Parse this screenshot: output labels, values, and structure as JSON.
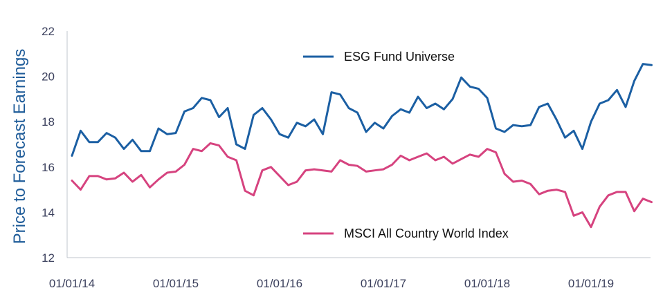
{
  "chart_data": {
    "type": "line",
    "ylabel": "Price to Forecast Earnings",
    "xlabel": "",
    "ylim": [
      12,
      22
    ],
    "yticks": [
      "12",
      "14",
      "16",
      "18",
      "20",
      "22"
    ],
    "xticks": [
      "01/01/14",
      "01/01/15",
      "01/01/16",
      "01/01/17",
      "01/01/18",
      "01/01/19"
    ],
    "x_start": "01/01/14",
    "x_interval": "monthly",
    "grid": false,
    "series": [
      {
        "name": "ESG Fund Universe",
        "color": "#1b5fa3",
        "values": [
          16.5,
          17.6,
          17.1,
          17.1,
          17.5,
          17.3,
          16.8,
          17.2,
          16.7,
          16.7,
          17.7,
          17.45,
          17.5,
          18.45,
          18.6,
          19.05,
          18.95,
          18.2,
          18.6,
          17.0,
          16.8,
          18.3,
          18.6,
          18.1,
          17.45,
          17.3,
          17.95,
          17.8,
          18.1,
          17.45,
          19.3,
          19.2,
          18.6,
          18.4,
          17.55,
          17.95,
          17.7,
          18.25,
          18.55,
          18.4,
          19.1,
          18.6,
          18.8,
          18.55,
          19.0,
          19.95,
          19.55,
          19.45,
          19.05,
          17.7,
          17.55,
          17.85,
          17.8,
          17.85,
          18.65,
          18.8,
          18.1,
          17.3,
          17.6,
          16.8,
          18.0,
          18.8,
          18.95,
          19.4,
          18.65,
          19.8,
          20.55,
          20.5
        ]
      },
      {
        "name": "MSCI All Country World Index",
        "color": "#d6437f",
        "values": [
          15.4,
          15.0,
          15.6,
          15.6,
          15.45,
          15.5,
          15.75,
          15.35,
          15.65,
          15.1,
          15.45,
          15.75,
          15.8,
          16.1,
          16.8,
          16.7,
          17.05,
          16.95,
          16.45,
          16.3,
          14.95,
          14.75,
          15.85,
          16.0,
          15.6,
          15.2,
          15.35,
          15.85,
          15.9,
          15.85,
          15.8,
          16.3,
          16.1,
          16.05,
          15.8,
          15.85,
          15.9,
          16.1,
          16.5,
          16.3,
          16.45,
          16.6,
          16.3,
          16.45,
          16.15,
          16.35,
          16.55,
          16.45,
          16.8,
          16.65,
          15.7,
          15.35,
          15.4,
          15.25,
          14.8,
          14.95,
          15.0,
          14.9,
          13.85,
          14.0,
          13.35,
          14.25,
          14.75,
          14.9,
          14.9,
          14.05,
          14.6,
          14.45
        ]
      }
    ]
  }
}
